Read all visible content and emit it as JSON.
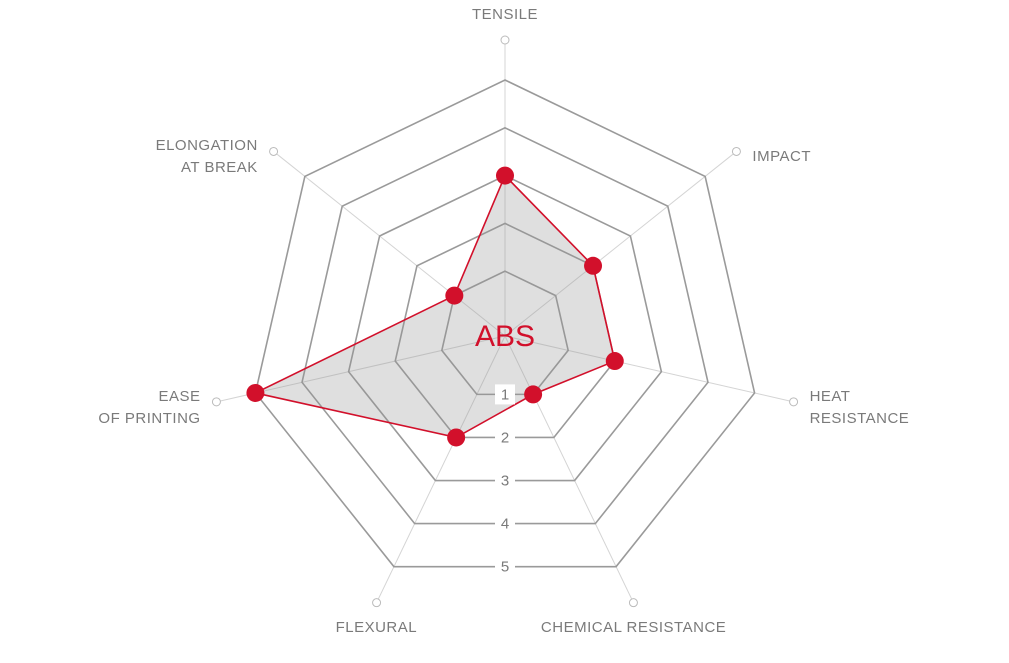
{
  "chart_data": {
    "type": "radar",
    "title": "ABS",
    "categories": [
      "TENSILE",
      "IMPACT",
      "HEAT\nRESISTANCE",
      "CHEMICAL RESISTANCE",
      "FLEXURAL",
      "EASE\nOF PRINTING",
      "ELONGATION\nAT BREAK"
    ],
    "series": [
      {
        "color": "#d2102b",
        "values": [
          3,
          2,
          2,
          1,
          2,
          5,
          1
        ]
      }
    ],
    "ylim": [
      0,
      5
    ],
    "yticks": [
      1,
      2,
      3,
      4,
      5
    ],
    "grid": true
  }
}
